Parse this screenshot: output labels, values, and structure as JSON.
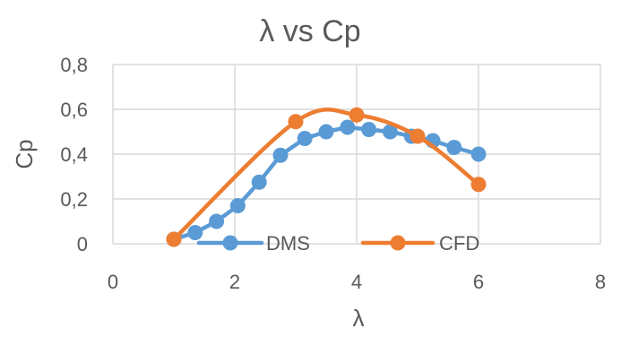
{
  "chart_data": {
    "type": "line",
    "title": "λ vs Cp",
    "xlabel": "λ",
    "ylabel": "Cp",
    "xlim": [
      0,
      8
    ],
    "ylim": [
      0,
      0.8
    ],
    "x_ticks": [
      0,
      2,
      4,
      6,
      8
    ],
    "y_ticks": [
      0,
      0.2,
      0.4,
      0.6,
      0.8
    ],
    "x_tick_labels": [
      "0",
      "2",
      "4",
      "6",
      "8"
    ],
    "y_tick_labels": [
      "0",
      "0,2",
      "0,4",
      "0,6",
      "0,8"
    ],
    "grid": true,
    "legend_position": "inside-bottom",
    "series": [
      {
        "name": "DMS",
        "color": "#5B9BD5",
        "smooth": false,
        "x": [
          1.0,
          1.35,
          1.7,
          2.05,
          2.4,
          2.75,
          3.15,
          3.5,
          3.85,
          4.2,
          4.55,
          4.9,
          5.25,
          5.6,
          6.0
        ],
        "y": [
          0.02,
          0.05,
          0.1,
          0.17,
          0.275,
          0.395,
          0.47,
          0.5,
          0.52,
          0.51,
          0.5,
          0.48,
          0.46,
          0.43,
          0.4
        ]
      },
      {
        "name": "CFD",
        "color": "#ED7D31",
        "smooth": true,
        "x": [
          1,
          3,
          4,
          5,
          6
        ],
        "y": [
          0.02,
          0.545,
          0.575,
          0.48,
          0.265
        ]
      }
    ]
  }
}
